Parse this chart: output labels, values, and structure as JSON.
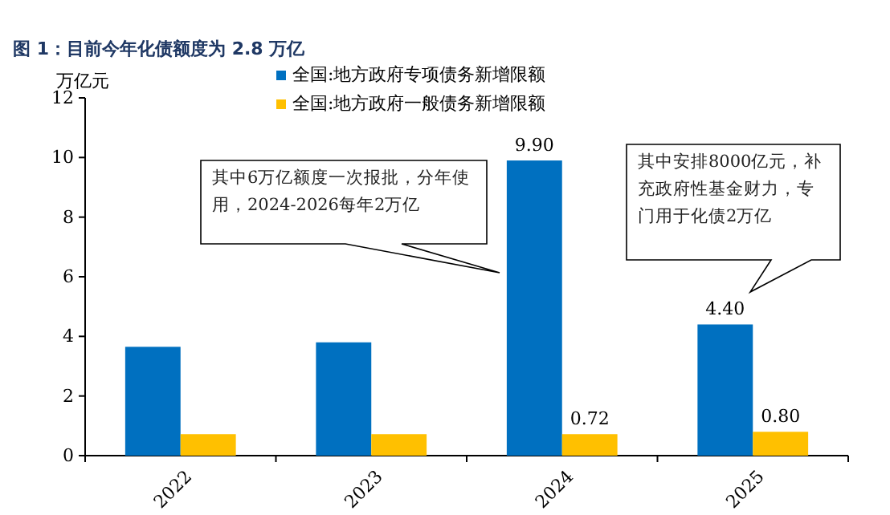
{
  "chart_data": {
    "type": "bar",
    "title": "图 1：目前今年化债额度为 2.8 万亿",
    "ylabel": "万亿元",
    "categories": [
      "2022",
      "2023",
      "2024",
      "2025"
    ],
    "series": [
      {
        "name": "全国:地方政府专项债务新增限额",
        "color": "#0070c0",
        "values": [
          3.65,
          3.8,
          9.9,
          4.4
        ],
        "value_labels": [
          null,
          null,
          "9.90",
          "4.40"
        ]
      },
      {
        "name": "全国:地方政府一般债务新增限额",
        "color": "#ffc000",
        "values": [
          0.72,
          0.72,
          0.72,
          0.8
        ],
        "value_labels": [
          null,
          null,
          "0.72",
          "0.80"
        ]
      }
    ],
    "ylim": [
      0,
      12
    ],
    "yticks": [
      0,
      2,
      4,
      6,
      8,
      10,
      12
    ],
    "legend": "top",
    "annotations": [
      "其中6万亿额度一次报批，分年使用，2024-2026每年2万亿",
      "其中安排8000亿元，补充政府性基金财力，专门用于化债2万亿"
    ]
  }
}
